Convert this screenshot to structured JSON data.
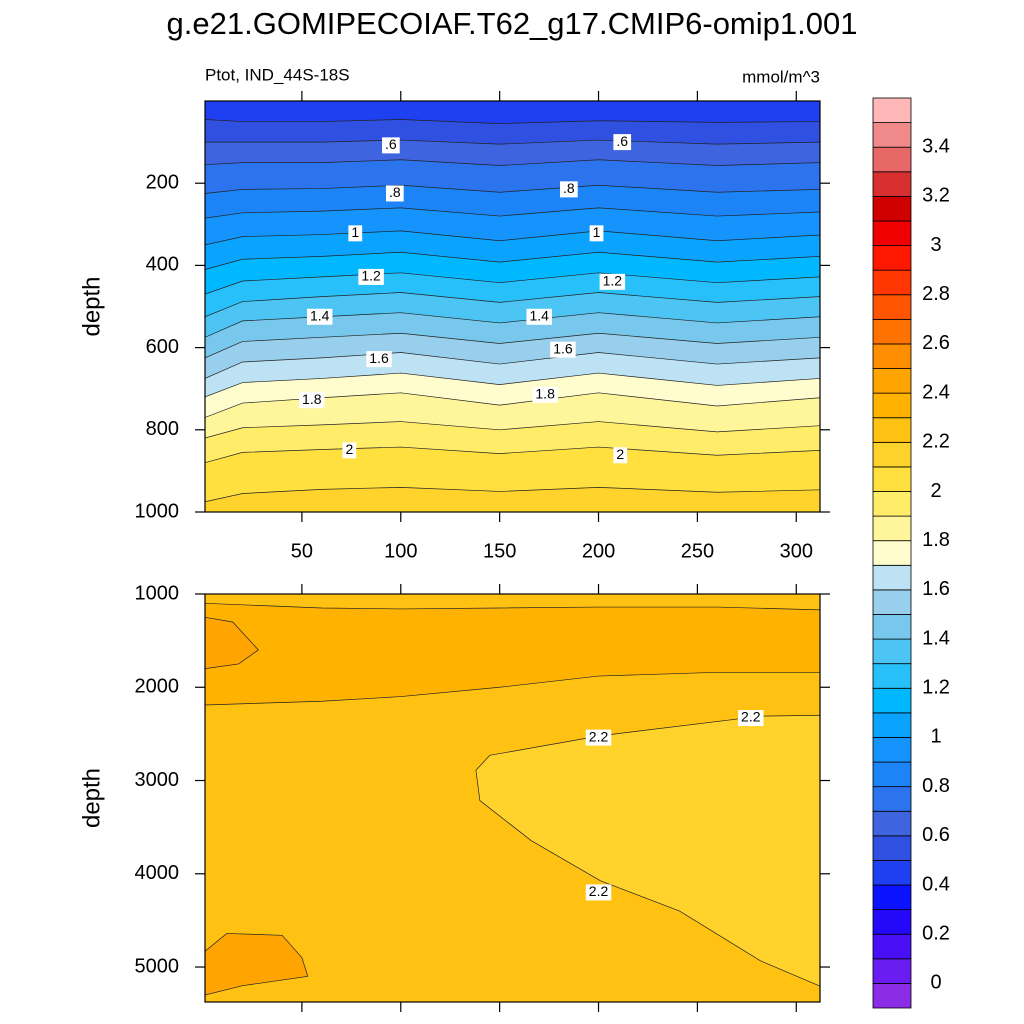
{
  "chart_data": {
    "type": "contour",
    "title": "g.e21.GOMIPECOIAF.T62_g17.CMIP6-omip1.001",
    "subtitle": "Ptot, IND_44S-18S",
    "units": "mmol/m^3",
    "colorbar": {
      "levels": [
        0,
        0.1,
        0.2,
        0.3,
        0.4,
        0.5,
        0.6,
        0.7,
        0.8,
        0.9,
        1,
        1.1,
        1.2,
        1.3,
        1.4,
        1.5,
        1.6,
        1.7,
        1.8,
        1.9,
        2,
        2.1,
        2.2,
        2.3,
        2.4,
        2.5,
        2.6,
        2.7,
        2.8,
        2.9,
        3,
        3.1,
        3.2,
        3.3,
        3.4,
        3.5
      ],
      "colors": [
        "#8b2ce6",
        "#6a1df0",
        "#4a10f5",
        "#2408fa",
        "#0a12ff",
        "#1f40f0",
        "#3050e2",
        "#3e64e0",
        "#2c74ee",
        "#1c84f6",
        "#1494fc",
        "#0aa4ff",
        "#00b8ff",
        "#28c0fa",
        "#4cc4f4",
        "#78c8ee",
        "#98cfec",
        "#bde2f4",
        "#fffdcd",
        "#fff59a",
        "#ffed6a",
        "#ffe03e",
        "#ffd22c",
        "#ffc212",
        "#ffb300",
        "#ffa400",
        "#ff8e00",
        "#ff7200",
        "#ff5500",
        "#ff3600",
        "#ff1800",
        "#f00000",
        "#d00000",
        "#d83030",
        "#e86868",
        "#f08a8a",
        "#ffb8b8"
      ],
      "ticks": [
        0,
        0.2,
        0.4,
        0.6,
        0.8,
        1,
        1.2,
        1.4,
        1.6,
        1.8,
        2,
        2.2,
        2.4,
        2.6,
        2.8,
        3,
        3.2,
        3.4
      ]
    },
    "panels": [
      {
        "ylabel": "depth",
        "xlim": [
          1,
          312
        ],
        "ylim": [
          0,
          1000
        ],
        "xticks": [
          50,
          100,
          150,
          200,
          250,
          300
        ],
        "xtick_labels": true,
        "yticks": [
          200,
          400,
          600,
          800,
          1000
        ],
        "x": [
          1,
          20,
          60,
          100,
          150,
          200,
          260,
          312
        ],
        "contours": [
          {
            "level": 0.5,
            "depths": [
              45,
              50,
              50,
              45,
              55,
              48,
              52,
              50
            ]
          },
          {
            "level": 0.6,
            "depths": [
              100,
              100,
              100,
              95,
              105,
              95,
              105,
              100
            ]
          },
          {
            "level": 0.7,
            "depths": [
              155,
              150,
              150,
              143,
              157,
              143,
              157,
              150
            ]
          },
          {
            "level": 0.8,
            "depths": [
              225,
              215,
              213,
              205,
              222,
              205,
              222,
              215
            ]
          },
          {
            "level": 0.9,
            "depths": [
              285,
              272,
              268,
              260,
              280,
              260,
              280,
              270
            ]
          },
          {
            "level": 1,
            "depths": [
              350,
              330,
              325,
              316,
              340,
              316,
              340,
              326
            ]
          },
          {
            "level": 1.1,
            "depths": [
              410,
              385,
              378,
              368,
              392,
              368,
              392,
              378
            ]
          },
          {
            "level": 1.2,
            "depths": [
              470,
              438,
              428,
              418,
              442,
              418,
              442,
              428
            ]
          },
          {
            "level": 1.3,
            "depths": [
              525,
              488,
              476,
              466,
              490,
              466,
              490,
              476
            ]
          },
          {
            "level": 1.4,
            "depths": [
              575,
              535,
              525,
              515,
              540,
              515,
              540,
              525
            ]
          },
          {
            "level": 1.5,
            "depths": [
              625,
              585,
              575,
              565,
              590,
              565,
              590,
              575
            ]
          },
          {
            "level": 1.6,
            "depths": [
              675,
              635,
              625,
              612,
              640,
              612,
              640,
              625
            ]
          },
          {
            "level": 1.7,
            "depths": [
              720,
              685,
              675,
              662,
              690,
              662,
              692,
              675
            ]
          },
          {
            "level": 1.8,
            "depths": [
              770,
              735,
              722,
              710,
              740,
              710,
              742,
              722
            ]
          },
          {
            "level": 1.9,
            "depths": [
              820,
              795,
              788,
              780,
              800,
              780,
              805,
              790
            ]
          },
          {
            "level": 2,
            "depths": [
              880,
              855,
              848,
              842,
              858,
              842,
              862,
              850
            ]
          },
          {
            "level": 2.1,
            "depths": [
              975,
              955,
              945,
              940,
              950,
              940,
              952,
              946
            ]
          }
        ],
        "labels": [
          {
            "value": 0.6,
            "label": ".6",
            "x": 95,
            "y": 108
          },
          {
            "value": 0.6,
            "label": ".6",
            "x": 212,
            "y": 100
          },
          {
            "value": 0.8,
            "label": ".8",
            "x": 97,
            "y": 225
          },
          {
            "value": 0.8,
            "label": ".8",
            "x": 185,
            "y": 215
          },
          {
            "value": 1,
            "x": 77,
            "y": 322
          },
          {
            "value": 1,
            "x": 199,
            "y": 322
          },
          {
            "value": 1.2,
            "x": 85,
            "y": 428
          },
          {
            "value": 1.2,
            "x": 207,
            "y": 440
          },
          {
            "value": 1.4,
            "x": 59,
            "y": 525
          },
          {
            "value": 1.4,
            "x": 170,
            "y": 525
          },
          {
            "value": 1.6,
            "x": 89,
            "y": 628
          },
          {
            "value": 1.6,
            "x": 182,
            "y": 605
          },
          {
            "value": 1.8,
            "x": 55,
            "y": 728
          },
          {
            "value": 1.8,
            "x": 173,
            "y": 715
          },
          {
            "value": 2,
            "x": 74,
            "y": 850
          },
          {
            "value": 2,
            "x": 211,
            "y": 862
          }
        ]
      },
      {
        "ylabel": "depth",
        "xlim": [
          1,
          312
        ],
        "ylim": [
          1000,
          5375
        ],
        "xticks": [
          50,
          100,
          150,
          200,
          250,
          300
        ],
        "xtick_labels": false,
        "yticks": [
          1000,
          2000,
          3000,
          4000,
          5000
        ],
        "background_level": 2.2,
        "areas": [
          {
            "level": 2.3,
            "x": [
              1,
              60,
              100,
              150,
              200,
              260,
              312,
              312,
              260,
              200,
              150,
              100,
              60,
              1
            ],
            "y": [
              1100,
              1150,
              1160,
              1150,
              1140,
              1140,
              1170,
              1840,
              1840,
              1880,
              2000,
              2100,
              2150,
              2190
            ]
          },
          {
            "level": 2.4,
            "x": [
              1,
              15,
              28,
              18,
              1
            ],
            "y": [
              1250,
              1300,
              1600,
              1750,
              1800
            ]
          },
          {
            "level": 2.4,
            "x": [
              1,
              12,
              40,
              50,
              53,
              20,
              1
            ],
            "y": [
              4830,
              4640,
              4660,
              4900,
              5100,
              5200,
              5300
            ]
          },
          {
            "level": 2.1,
            "x": [
              312,
              282,
              201,
              145,
              138,
              140,
              166,
              201,
              241,
              282,
              312
            ],
            "y": [
              2300,
              2310,
              2520,
              2730,
              2890,
              3215,
              3645,
              4075,
              4400,
              4935,
              5205
            ]
          }
        ],
        "labels": [
          {
            "value": 2.2,
            "x": 200,
            "y": 2540
          },
          {
            "value": 2.2,
            "x": 277,
            "y": 2330
          },
          {
            "value": 2.2,
            "x": 200,
            "y": 4200
          }
        ]
      }
    ]
  }
}
